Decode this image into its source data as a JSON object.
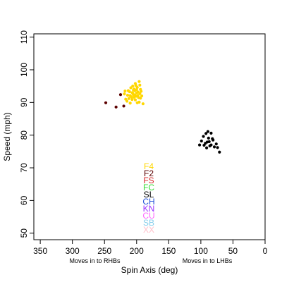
{
  "chart_data": {
    "type": "scatter",
    "title": "",
    "xlabel": "Spin Axis (deg)",
    "ylabel": "Speed (mph)",
    "xlim": [
      360,
      0
    ],
    "ylim": [
      48,
      111
    ],
    "x_reversed": true,
    "x_ticks": [
      350,
      300,
      250,
      200,
      150,
      100,
      50,
      0
    ],
    "y_ticks": [
      50,
      60,
      70,
      80,
      90,
      100,
      110
    ],
    "grid": false,
    "annotations": [
      {
        "text": "Moves in to RHBs",
        "x": 265
      },
      {
        "text": "Moves in to LHBs",
        "x": 90
      }
    ],
    "legend": {
      "placement": "bottom-center",
      "entries": [
        {
          "label": "F4",
          "color": "#FFD700"
        },
        {
          "label": "F2",
          "color": "#5C0000"
        },
        {
          "label": "FS",
          "color": "#D62728"
        },
        {
          "label": "FC",
          "color": "#33DD33"
        },
        {
          "label": "SL",
          "color": "#000000"
        },
        {
          "label": "CH",
          "color": "#1F4FD8"
        },
        {
          "label": "KN",
          "color": "#9B30FF"
        },
        {
          "label": "CU",
          "color": "#FF66FF"
        },
        {
          "label": "SB",
          "color": "#87CEEB"
        },
        {
          "label": "XX",
          "color": "#FFC0CB"
        }
      ]
    },
    "series": [
      {
        "name": "F4",
        "color": "#FFD700",
        "points": [
          [
            215,
            90.4
          ],
          [
            212,
            91.2
          ],
          [
            210,
            92.1
          ],
          [
            208,
            91.7
          ],
          [
            207,
            93.0
          ],
          [
            205,
            92.4
          ],
          [
            204,
            94.1
          ],
          [
            203,
            93.6
          ],
          [
            202,
            90.8
          ],
          [
            201,
            95.2
          ],
          [
            200,
            92.9
          ],
          [
            199,
            94.6
          ],
          [
            198,
            93.2
          ],
          [
            197,
            91.5
          ],
          [
            196,
            96.4
          ],
          [
            195,
            92.7
          ],
          [
            194,
            94.0
          ],
          [
            193,
            93.4
          ],
          [
            196,
            90.1
          ],
          [
            201,
            91.9
          ],
          [
            205,
            93.8
          ],
          [
            209,
            94.5
          ],
          [
            211,
            93.3
          ],
          [
            214,
            92.2
          ],
          [
            217,
            91.0
          ],
          [
            219,
            92.6
          ],
          [
            206,
            95.0
          ],
          [
            199,
            89.9
          ],
          [
            192,
            92.0
          ],
          [
            203,
            92.3
          ],
          [
            207,
            90.9
          ],
          [
            194,
            91.3
          ],
          [
            200,
            93.9
          ],
          [
            202,
            95.8
          ],
          [
            213,
            93.6
          ],
          [
            190,
            89.6
          ],
          [
            218,
            93.5
          ],
          [
            198,
            92.1
          ],
          [
            195,
            95.3
          ],
          [
            210,
            89.8
          ],
          [
            204,
            91.6
          ],
          [
            206,
            92.8
          ]
        ]
      },
      {
        "name": "F2",
        "color": "#5C0000",
        "points": [
          [
            248,
            89.9
          ],
          [
            232,
            88.6
          ],
          [
            225,
            92.4
          ],
          [
            220,
            88.9
          ]
        ]
      },
      {
        "name": "SL",
        "color": "#000000",
        "points": [
          [
            89,
            81.1
          ],
          [
            92,
            80.5
          ],
          [
            96,
            79.6
          ],
          [
            84,
            80.6
          ],
          [
            81,
            78.5
          ],
          [
            87,
            78.0
          ],
          [
            93,
            77.5
          ],
          [
            99,
            78.2
          ],
          [
            102,
            77.0
          ],
          [
            86,
            76.7
          ],
          [
            79,
            76.4
          ],
          [
            76,
            77.3
          ],
          [
            91,
            76.1
          ],
          [
            84,
            77.0
          ],
          [
            71,
            74.8
          ],
          [
            88,
            79.1
          ],
          [
            95,
            76.9
          ],
          [
            82,
            78.9
          ],
          [
            90,
            77.9
          ],
          [
            74,
            76.2
          ]
        ]
      }
    ]
  }
}
